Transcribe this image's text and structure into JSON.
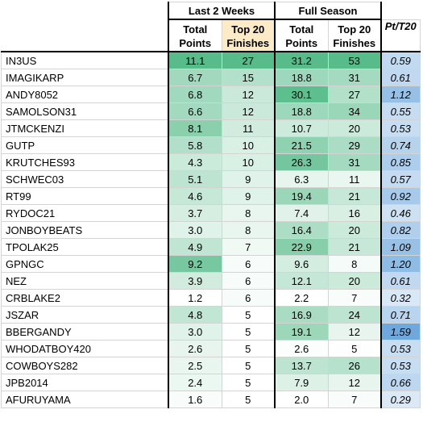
{
  "headers": {
    "group_last2": "Last 2 Weeks",
    "group_full": "Full Season",
    "total_top": "Total",
    "total_bottom": "Points",
    "top20_top": "Top 20",
    "top20_bottom": "Finishes",
    "ratio": "Pt/T20"
  },
  "colors": {
    "green_max": "#57bb8a",
    "white": "#ffffff",
    "blue_max": "#6fa8dc",
    "top20_header": "#fdebc8"
  },
  "rows": [
    {
      "name": "IN3US",
      "l2_points": "11.1",
      "l2_top20": "27",
      "fs_points": "31.2",
      "fs_top20": "53",
      "ratio": "0.59"
    },
    {
      "name": "IMAGIKARP",
      "l2_points": "6.7",
      "l2_top20": "15",
      "fs_points": "18.8",
      "fs_top20": "31",
      "ratio": "0.61"
    },
    {
      "name": "ANDY8052",
      "l2_points": "6.8",
      "l2_top20": "12",
      "fs_points": "30.1",
      "fs_top20": "27",
      "ratio": "1.12"
    },
    {
      "name": "SAMOLSON31",
      "l2_points": "6.6",
      "l2_top20": "12",
      "fs_points": "18.8",
      "fs_top20": "34",
      "ratio": "0.55"
    },
    {
      "name": "JTMCKENZI",
      "l2_points": "8.1",
      "l2_top20": "11",
      "fs_points": "10.7",
      "fs_top20": "20",
      "ratio": "0.53"
    },
    {
      "name": "GUTP",
      "l2_points": "5.8",
      "l2_top20": "10",
      "fs_points": "21.5",
      "fs_top20": "29",
      "ratio": "0.74"
    },
    {
      "name": "KRUTCHES93",
      "l2_points": "4.3",
      "l2_top20": "10",
      "fs_points": "26.3",
      "fs_top20": "31",
      "ratio": "0.85"
    },
    {
      "name": "SCHWEC03",
      "l2_points": "5.1",
      "l2_top20": "9",
      "fs_points": "6.3",
      "fs_top20": "11",
      "ratio": "0.57"
    },
    {
      "name": "RT99",
      "l2_points": "4.6",
      "l2_top20": "9",
      "fs_points": "19.4",
      "fs_top20": "21",
      "ratio": "0.92"
    },
    {
      "name": "RYDOC21",
      "l2_points": "3.7",
      "l2_top20": "8",
      "fs_points": "7.4",
      "fs_top20": "16",
      "ratio": "0.46"
    },
    {
      "name": "JONBOYBEATS",
      "l2_points": "3.0",
      "l2_top20": "8",
      "fs_points": "16.4",
      "fs_top20": "20",
      "ratio": "0.82"
    },
    {
      "name": "TPOLAK25",
      "l2_points": "4.9",
      "l2_top20": "7",
      "fs_points": "22.9",
      "fs_top20": "21",
      "ratio": "1.09"
    },
    {
      "name": "GPNGC",
      "l2_points": "9.2",
      "l2_top20": "6",
      "fs_points": "9.6",
      "fs_top20": "8",
      "ratio": "1.20"
    },
    {
      "name": "NEZ",
      "l2_points": "3.9",
      "l2_top20": "6",
      "fs_points": "12.1",
      "fs_top20": "20",
      "ratio": "0.61"
    },
    {
      "name": "CRBLAKE2",
      "l2_points": "1.2",
      "l2_top20": "6",
      "fs_points": "2.2",
      "fs_top20": "7",
      "ratio": "0.32"
    },
    {
      "name": "JSZAR",
      "l2_points": "4.8",
      "l2_top20": "5",
      "fs_points": "16.9",
      "fs_top20": "24",
      "ratio": "0.71"
    },
    {
      "name": "BBERGANDY",
      "l2_points": "3.0",
      "l2_top20": "5",
      "fs_points": "19.1",
      "fs_top20": "12",
      "ratio": "1.59"
    },
    {
      "name": "WHODATBOY420",
      "l2_points": "2.6",
      "l2_top20": "5",
      "fs_points": "2.6",
      "fs_top20": "5",
      "ratio": "0.53"
    },
    {
      "name": "COWBOYS282",
      "l2_points": "2.5",
      "l2_top20": "5",
      "fs_points": "13.7",
      "fs_top20": "26",
      "ratio": "0.53"
    },
    {
      "name": "JPB2014",
      "l2_points": "2.4",
      "l2_top20": "5",
      "fs_points": "7.9",
      "fs_top20": "12",
      "ratio": "0.66"
    },
    {
      "name": "AFURUYAMA",
      "l2_points": "1.6",
      "l2_top20": "5",
      "fs_points": "2.0",
      "fs_top20": "7",
      "ratio": "0.29"
    }
  ]
}
